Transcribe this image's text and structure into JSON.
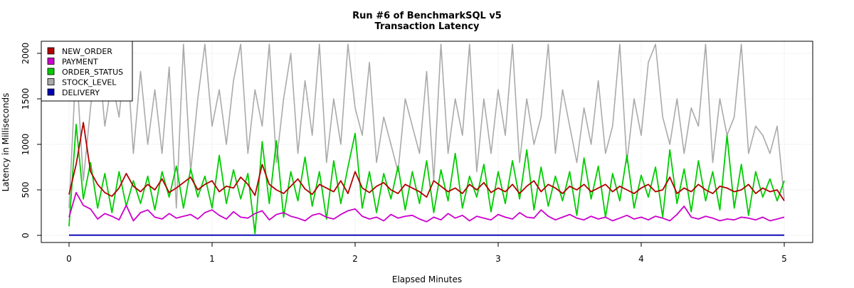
{
  "chart_data": {
    "type": "line",
    "title": "Run #6 of BenchmarkSQL v5",
    "subtitle": "Transaction Latency",
    "xlabel": "Elapsed Minutes",
    "ylabel": "Latency in Milliseconds",
    "xlim": [
      0,
      5
    ],
    "ylim": [
      0,
      2100
    ],
    "x_ticks": [
      0,
      1,
      2,
      3,
      4,
      5
    ],
    "y_ticks": [
      0,
      500,
      1000,
      1500,
      2000
    ],
    "grid": true,
    "legend_position": "top-left",
    "series": [
      {
        "name": "NEW_ORDER",
        "color": "#b20000",
        "x": [
          0,
          0.05,
          0.1,
          0.15,
          0.2,
          0.25,
          0.3,
          0.35,
          0.4,
          0.45,
          0.5,
          0.55,
          0.6,
          0.65,
          0.7,
          0.75,
          0.8,
          0.85,
          0.9,
          0.95,
          1,
          1.05,
          1.1,
          1.15,
          1.2,
          1.25,
          1.3,
          1.35,
          1.4,
          1.45,
          1.5,
          1.55,
          1.6,
          1.65,
          1.7,
          1.75,
          1.8,
          1.85,
          1.9,
          1.95,
          2,
          2.05,
          2.1,
          2.15,
          2.2,
          2.25,
          2.3,
          2.35,
          2.4,
          2.45,
          2.5,
          2.55,
          2.6,
          2.65,
          2.7,
          2.75,
          2.8,
          2.85,
          2.9,
          2.95,
          3,
          3.05,
          3.1,
          3.15,
          3.2,
          3.25,
          3.3,
          3.35,
          3.4,
          3.45,
          3.5,
          3.55,
          3.6,
          3.65,
          3.7,
          3.75,
          3.8,
          3.85,
          3.9,
          3.95,
          4,
          4.05,
          4.1,
          4.15,
          4.2,
          4.25,
          4.3,
          4.35,
          4.4,
          4.45,
          4.5,
          4.55,
          4.6,
          4.65,
          4.7,
          4.75,
          4.8,
          4.85,
          4.9,
          4.95,
          5
        ],
        "values": [
          450,
          780,
          1240,
          700,
          560,
          470,
          430,
          520,
          680,
          540,
          480,
          560,
          500,
          620,
          470,
          520,
          580,
          640,
          500,
          560,
          600,
          480,
          540,
          520,
          640,
          560,
          440,
          780,
          560,
          500,
          460,
          540,
          620,
          510,
          450,
          560,
          520,
          480,
          600,
          460,
          700,
          520,
          470,
          540,
          580,
          500,
          460,
          560,
          520,
          480,
          420,
          600,
          540,
          480,
          520,
          460,
          560,
          500,
          580,
          470,
          520,
          480,
          560,
          460,
          540,
          600,
          480,
          560,
          520,
          460,
          540,
          500,
          560,
          480,
          520,
          560,
          480,
          540,
          500,
          460,
          520,
          560,
          480,
          500,
          640,
          460,
          520,
          480,
          560,
          500,
          460,
          540,
          520,
          480,
          500,
          560,
          460,
          520,
          480,
          500,
          380
        ]
      },
      {
        "name": "PAYMENT",
        "color": "#cc00cc",
        "x": [
          0,
          0.05,
          0.1,
          0.15,
          0.2,
          0.25,
          0.3,
          0.35,
          0.4,
          0.45,
          0.5,
          0.55,
          0.6,
          0.65,
          0.7,
          0.75,
          0.8,
          0.85,
          0.9,
          0.95,
          1,
          1.05,
          1.1,
          1.15,
          1.2,
          1.25,
          1.3,
          1.35,
          1.4,
          1.45,
          1.5,
          1.55,
          1.6,
          1.65,
          1.7,
          1.75,
          1.8,
          1.85,
          1.9,
          1.95,
          2,
          2.05,
          2.1,
          2.15,
          2.2,
          2.25,
          2.3,
          2.35,
          2.4,
          2.45,
          2.5,
          2.55,
          2.6,
          2.65,
          2.7,
          2.75,
          2.8,
          2.85,
          2.9,
          2.95,
          3,
          3.05,
          3.1,
          3.15,
          3.2,
          3.25,
          3.3,
          3.35,
          3.4,
          3.45,
          3.5,
          3.55,
          3.6,
          3.65,
          3.7,
          3.75,
          3.8,
          3.85,
          3.9,
          3.95,
          4,
          4.05,
          4.1,
          4.15,
          4.2,
          4.25,
          4.3,
          4.35,
          4.4,
          4.45,
          4.5,
          4.55,
          4.6,
          4.65,
          4.7,
          4.75,
          4.8,
          4.85,
          4.9,
          4.95,
          5
        ],
        "values": [
          200,
          470,
          330,
          290,
          180,
          240,
          210,
          170,
          330,
          160,
          250,
          280,
          200,
          180,
          240,
          190,
          210,
          230,
          180,
          250,
          280,
          220,
          180,
          260,
          200,
          190,
          240,
          270,
          170,
          230,
          250,
          210,
          190,
          160,
          220,
          240,
          200,
          180,
          230,
          270,
          290,
          210,
          180,
          200,
          160,
          230,
          190,
          210,
          220,
          180,
          150,
          200,
          170,
          240,
          190,
          220,
          160,
          210,
          190,
          170,
          230,
          200,
          180,
          250,
          200,
          190,
          280,
          210,
          170,
          200,
          230,
          190,
          170,
          210,
          180,
          200,
          160,
          190,
          220,
          180,
          200,
          170,
          210,
          190,
          160,
          230,
          320,
          200,
          180,
          210,
          190,
          160,
          180,
          170,
          200,
          190,
          170,
          200,
          160,
          180,
          200
        ]
      },
      {
        "name": "ORDER_STATUS",
        "color": "#00cc00",
        "x": [
          0,
          0.05,
          0.1,
          0.15,
          0.2,
          0.25,
          0.3,
          0.35,
          0.4,
          0.45,
          0.5,
          0.55,
          0.6,
          0.65,
          0.7,
          0.75,
          0.8,
          0.85,
          0.9,
          0.95,
          1,
          1.05,
          1.1,
          1.15,
          1.2,
          1.25,
          1.3,
          1.35,
          1.4,
          1.45,
          1.5,
          1.55,
          1.6,
          1.65,
          1.7,
          1.75,
          1.8,
          1.85,
          1.9,
          1.95,
          2,
          2.05,
          2.1,
          2.15,
          2.2,
          2.25,
          2.3,
          2.35,
          2.4,
          2.45,
          2.5,
          2.55,
          2.6,
          2.65,
          2.7,
          2.75,
          2.8,
          2.85,
          2.9,
          2.95,
          3,
          3.05,
          3.1,
          3.15,
          3.2,
          3.25,
          3.3,
          3.35,
          3.4,
          3.45,
          3.5,
          3.55,
          3.6,
          3.65,
          3.7,
          3.75,
          3.8,
          3.85,
          3.9,
          3.95,
          4,
          4.05,
          4.1,
          4.15,
          4.2,
          4.25,
          4.3,
          4.35,
          4.4,
          4.45,
          4.5,
          4.55,
          4.6,
          4.65,
          4.7,
          4.75,
          4.8,
          4.85,
          4.9,
          4.95,
          5
        ],
        "values": [
          100,
          1220,
          400,
          800,
          300,
          680,
          250,
          700,
          320,
          600,
          350,
          650,
          280,
          700,
          420,
          760,
          300,
          730,
          420,
          650,
          300,
          880,
          350,
          720,
          400,
          680,
          20,
          1030,
          350,
          1040,
          200,
          700,
          380,
          860,
          320,
          700,
          180,
          820,
          350,
          750,
          1120,
          300,
          700,
          250,
          680,
          400,
          760,
          280,
          700,
          350,
          820,
          250,
          720,
          380,
          900,
          300,
          650,
          420,
          780,
          260,
          700,
          350,
          820,
          400,
          940,
          280,
          750,
          320,
          650,
          380,
          700,
          220,
          850,
          400,
          760,
          200,
          680,
          380,
          880,
          300,
          660,
          420,
          750,
          200,
          940,
          350,
          730,
          260,
          820,
          380,
          700,
          280,
          1100,
          300,
          780,
          220,
          700,
          420,
          620,
          380,
          600
        ]
      },
      {
        "name": "STOCK_LEVEL",
        "color": "#aaaaaa",
        "x": [
          0,
          0.05,
          0.1,
          0.15,
          0.2,
          0.25,
          0.3,
          0.35,
          0.4,
          0.45,
          0.5,
          0.55,
          0.6,
          0.65,
          0.7,
          0.75,
          0.8,
          0.85,
          0.9,
          0.95,
          1,
          1.05,
          1.1,
          1.15,
          1.2,
          1.25,
          1.3,
          1.35,
          1.4,
          1.45,
          1.5,
          1.55,
          1.6,
          1.65,
          1.7,
          1.75,
          1.8,
          1.85,
          1.9,
          1.95,
          2,
          2.05,
          2.1,
          2.15,
          2.2,
          2.25,
          2.3,
          2.35,
          2.4,
          2.45,
          2.5,
          2.55,
          2.6,
          2.65,
          2.7,
          2.75,
          2.8,
          2.85,
          2.9,
          2.95,
          3,
          3.05,
          3.1,
          3.15,
          3.2,
          3.25,
          3.3,
          3.35,
          3.4,
          3.45,
          3.5,
          3.55,
          3.6,
          3.65,
          3.7,
          3.75,
          3.8,
          3.85,
          3.9,
          3.95,
          4,
          4.05,
          4.1,
          4.15,
          4.2,
          4.25,
          4.3,
          4.35,
          4.4,
          4.45,
          4.5,
          4.55,
          4.6,
          4.65,
          4.7,
          4.75,
          4.8,
          4.85,
          4.9,
          4.95,
          5
        ],
        "values": [
          300,
          1900,
          600,
          1400,
          2100,
          1200,
          1700,
          1300,
          2100,
          900,
          1800,
          1000,
          1600,
          900,
          1850,
          300,
          2100,
          700,
          1500,
          2100,
          1200,
          1600,
          1000,
          1700,
          2100,
          900,
          1600,
          1200,
          2100,
          800,
          1500,
          2000,
          900,
          1700,
          1100,
          2100,
          800,
          1500,
          1000,
          2100,
          1400,
          1100,
          1900,
          800,
          1300,
          1000,
          700,
          1500,
          1200,
          900,
          1800,
          600,
          2100,
          900,
          1500,
          1100,
          2100,
          700,
          1500,
          900,
          1600,
          1100,
          2100,
          800,
          1500,
          1000,
          1300,
          2100,
          900,
          1600,
          1200,
          800,
          1400,
          1000,
          1700,
          900,
          1200,
          2100,
          800,
          1500,
          1100,
          1900,
          2100,
          1300,
          1000,
          1500,
          900,
          1400,
          1200,
          2100,
          800,
          1500,
          1100,
          1300,
          2100,
          900,
          1200,
          1100,
          900,
          1200,
          400
        ]
      },
      {
        "name": "DELIVERY",
        "color": "#0000b2",
        "x": [
          0,
          5
        ],
        "values": [
          2,
          2
        ]
      }
    ]
  }
}
